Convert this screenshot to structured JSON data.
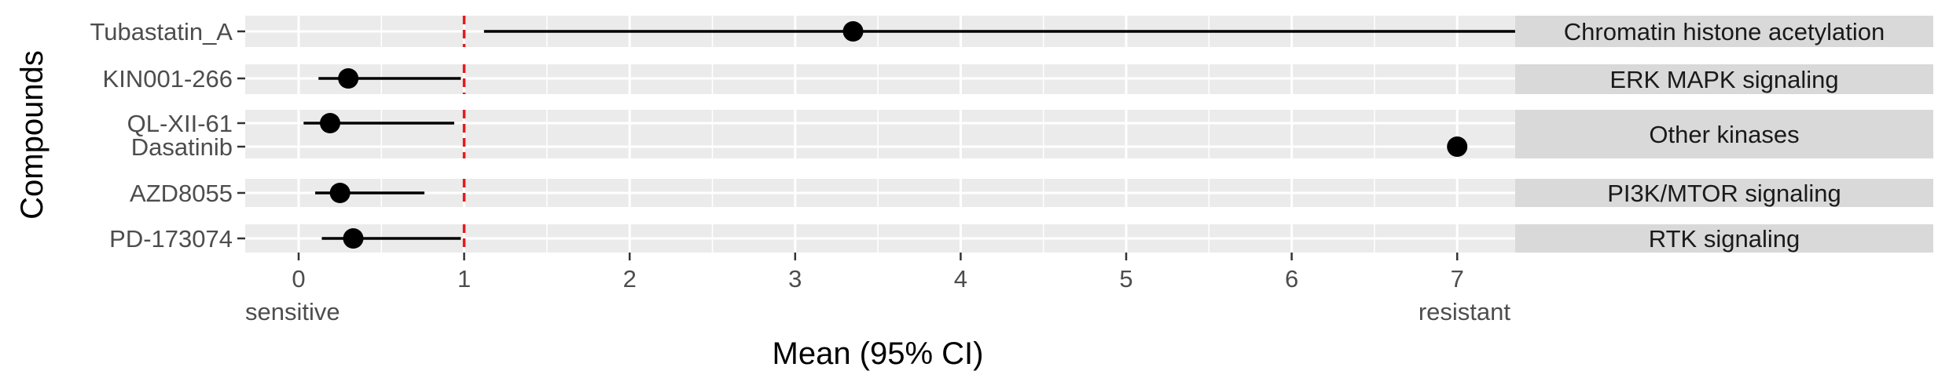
{
  "chart_data": {
    "type": "scatter",
    "subtype": "forest plot (point estimate with 95% CI), faceted by pathway",
    "xlabel": "Mean (95% CI)",
    "ylabel": "Compounds",
    "xlim": [
      -0.33,
      7.35
    ],
    "x_ticks": [
      0,
      1,
      2,
      3,
      4,
      5,
      6,
      7
    ],
    "x_tick_labels": [
      "0",
      "1",
      "2",
      "3",
      "4",
      "5",
      "6",
      "7"
    ],
    "reference_line": {
      "x": 1,
      "style": "dashed",
      "color": "#e41a1c"
    },
    "annotations": {
      "left": "sensitive",
      "right": "resistant"
    },
    "grid": true,
    "panel_background": "#ebebeb",
    "strip_background": "#d9d9d9",
    "point_color": "#000000",
    "facets": [
      {
        "label": "Chromatin_histone_acetylation",
        "compounds": [
          {
            "name": "Tubastatin_A",
            "mean": 3.35,
            "lower": 1.12,
            "upper": 7.35
          }
        ]
      },
      {
        "label": "ERK_MAPK_signaling",
        "compounds": [
          {
            "name": "KIN001-266",
            "mean": 0.3,
            "lower": 0.12,
            "upper": 0.98
          }
        ]
      },
      {
        "label": "Other_kinases",
        "compounds": [
          {
            "name": "QL-XII-61",
            "mean": 0.19,
            "lower": 0.03,
            "upper": 0.94
          },
          {
            "name": "Dasatinib",
            "mean": 7.0,
            "lower": null,
            "upper": null
          }
        ]
      },
      {
        "label": "PI3K/MTOR_signaling",
        "compounds": [
          {
            "name": "AZD8055",
            "mean": 0.25,
            "lower": 0.1,
            "upper": 0.76
          }
        ]
      },
      {
        "label": "RTK_signaling",
        "compounds": [
          {
            "name": "PD-173074",
            "mean": 0.33,
            "lower": 0.14,
            "upper": 0.98
          }
        ]
      }
    ]
  }
}
